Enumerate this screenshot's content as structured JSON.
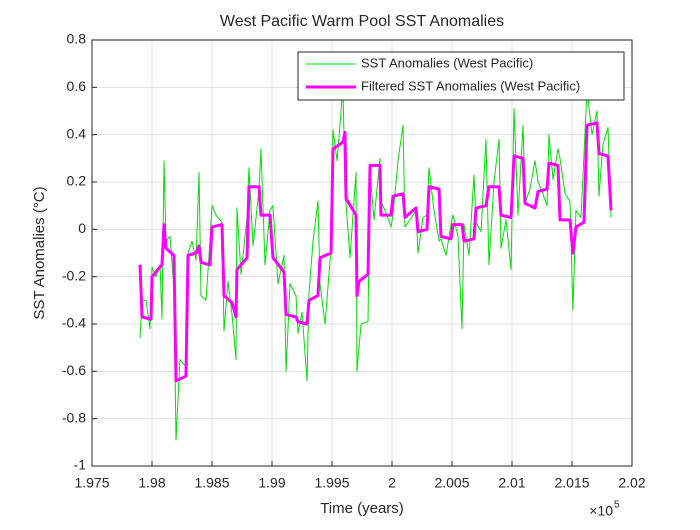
{
  "chart_data": {
    "type": "line",
    "title": "West Pacific Warm Pool SST Anomalies",
    "xlabel": "Time (years)",
    "ylabel": "SST Anomalies (°C)",
    "x_exponent_base": "×10",
    "x_exponent_power": "5",
    "xlim": [
      197500,
      202000
    ],
    "xticks": [
      {
        "value": 197500,
        "label": "1.975"
      },
      {
        "value": 198000,
        "label": "1.98"
      },
      {
        "value": 198500,
        "label": "1.985"
      },
      {
        "value": 199000,
        "label": "1.99"
      },
      {
        "value": 199500,
        "label": "1.995"
      },
      {
        "value": 200000,
        "label": "2"
      },
      {
        "value": 200500,
        "label": "2.005"
      },
      {
        "value": 201000,
        "label": "2.01"
      },
      {
        "value": 201500,
        "label": "2.015"
      },
      {
        "value": 202000,
        "label": "2.02"
      }
    ],
    "ylim": [
      -1,
      0.8
    ],
    "yticks": [
      -1,
      -0.8,
      -0.6,
      -0.4,
      -0.2,
      0,
      0.2,
      0.4,
      0.6,
      0.8
    ],
    "grid": true,
    "legend": "northeast",
    "series": [
      {
        "name": "SST Anomalies (West Pacific)",
        "color": "#00e000",
        "width": 1,
        "x": [
          197900,
          197917,
          197950,
          197983,
          198000,
          198033,
          198067,
          198083,
          198100,
          198117,
          198150,
          198183,
          198200,
          198233,
          198283,
          198300,
          198333,
          198367,
          198392,
          198408,
          198450,
          198483,
          198500,
          198533,
          198583,
          198600,
          198633,
          198667,
          198700,
          198708,
          198742,
          198792,
          198808,
          198842,
          198892,
          198908,
          198942,
          198983,
          199008,
          199050,
          199100,
          199117,
          199150,
          199200,
          199217,
          199250,
          199292,
          199308,
          199342,
          199383,
          199400,
          199442,
          199492,
          199508,
          199542,
          199592,
          199608,
          199650,
          199700,
          199708,
          199742,
          199800,
          199817,
          199850,
          199900,
          199908,
          199950,
          199992,
          200008,
          200050,
          200092,
          200108,
          200150,
          200200,
          200217,
          200258,
          200292,
          200308,
          200350,
          200392,
          200408,
          200450,
          200492,
          200508,
          200550,
          200583,
          200600,
          200642,
          200683,
          200700,
          200742,
          200783,
          200808,
          200850,
          200892,
          200908,
          200950,
          200992,
          201017,
          201050,
          201092,
          201108,
          201150,
          201192,
          201217,
          201250,
          201292,
          201308,
          201342,
          201383,
          201400,
          201442,
          201483,
          201508,
          201533,
          201575,
          201625,
          201667,
          201708,
          201725,
          201758,
          201800,
          201825
        ],
        "values": [
          -0.46,
          -0.3,
          -0.3,
          -0.42,
          -0.16,
          -0.2,
          -0.15,
          -0.38,
          0.29,
          -0.05,
          -0.03,
          -0.25,
          -0.89,
          -0.55,
          -0.58,
          -0.1,
          -0.05,
          -0.13,
          0.24,
          -0.28,
          -0.3,
          -0.05,
          0.1,
          0.06,
          0.03,
          -0.43,
          -0.22,
          -0.36,
          -0.55,
          0.09,
          -0.19,
          0.05,
          0.26,
          -0.07,
          0.17,
          0.34,
          -0.15,
          0.08,
          0.1,
          -0.23,
          -0.11,
          -0.6,
          -0.23,
          -0.28,
          -0.44,
          -0.35,
          -0.64,
          -0.27,
          -0.05,
          0.12,
          -0.23,
          -0.4,
          -0.08,
          0.42,
          0.29,
          0.6,
          0.17,
          -0.12,
          0.24,
          -0.6,
          -0.4,
          -0.39,
          0.24,
          0.04,
          0.3,
          0.12,
          0.07,
          0.01,
          0.06,
          0.29,
          0.44,
          0.01,
          0.04,
          0.08,
          -0.1,
          0.05,
          0.06,
          0.26,
          0.08,
          -0.05,
          -0.04,
          -0.11,
          0.02,
          0.06,
          -0.03,
          -0.42,
          0.02,
          -0.11,
          0.23,
          0.03,
          -0.01,
          0.38,
          -0.15,
          0.2,
          0.38,
          -0.08,
          0.04,
          -0.17,
          0.51,
          0.06,
          0.44,
          0.11,
          0.17,
          0.29,
          0.2,
          0.16,
          0.1,
          0.4,
          0.21,
          0.34,
          0.3,
          0.15,
          0.12,
          -0.34,
          0.08,
          0.05,
          0.59,
          0.4,
          0.5,
          0.14,
          0.36,
          0.43,
          0.05
        ]
      },
      {
        "name": "Filtered SST Anomalies (West Pacific)",
        "color": "#ff00ff",
        "width": 3,
        "x": [
          197900,
          197917,
          197992,
          198000,
          198083,
          198100,
          198117,
          198183,
          198200,
          198283,
          198300,
          198367,
          198392,
          198408,
          198483,
          198500,
          198583,
          198600,
          198667,
          198700,
          198708,
          198792,
          198808,
          198892,
          198908,
          198983,
          199008,
          199100,
          199117,
          199200,
          199217,
          199292,
          199308,
          199383,
          199400,
          199492,
          199508,
          199567,
          199592,
          199608,
          199617,
          199700,
          199708,
          199725,
          199800,
          199817,
          199900,
          199908,
          199992,
          200008,
          200092,
          200108,
          200175,
          200200,
          200217,
          200292,
          200308,
          200392,
          200408,
          200492,
          200508,
          200583,
          200600,
          200683,
          200700,
          200783,
          200808,
          200892,
          200908,
          200992,
          201017,
          201092,
          201108,
          201192,
          201217,
          201292,
          201308,
          201383,
          201400,
          201483,
          201508,
          201533,
          201600,
          201625,
          201708,
          201725,
          201800,
          201825
        ],
        "values": [
          -0.15,
          -0.37,
          -0.38,
          -0.2,
          -0.15,
          0.02,
          -0.08,
          -0.11,
          -0.64,
          -0.62,
          -0.11,
          -0.1,
          -0.07,
          -0.14,
          -0.15,
          0.01,
          0.02,
          -0.28,
          -0.31,
          -0.37,
          -0.17,
          -0.12,
          0.18,
          0.18,
          0.06,
          0.06,
          -0.12,
          -0.18,
          -0.36,
          -0.37,
          -0.39,
          -0.4,
          -0.3,
          -0.28,
          -0.12,
          -0.1,
          0.34,
          0.36,
          0.37,
          0.41,
          0.13,
          0.06,
          -0.28,
          -0.22,
          -0.19,
          0.27,
          0.27,
          0.06,
          0.06,
          0.14,
          0.15,
          0.05,
          0.08,
          0.09,
          -0.01,
          0.0,
          0.18,
          0.17,
          -0.03,
          -0.04,
          0.02,
          0.02,
          -0.05,
          -0.04,
          0.09,
          0.1,
          0.18,
          0.18,
          0.06,
          0.05,
          0.31,
          0.3,
          0.11,
          0.09,
          0.16,
          0.17,
          0.28,
          0.27,
          0.04,
          0.04,
          -0.1,
          0.01,
          0.03,
          0.44,
          0.45,
          0.32,
          0.31,
          0.08
        ]
      }
    ]
  }
}
